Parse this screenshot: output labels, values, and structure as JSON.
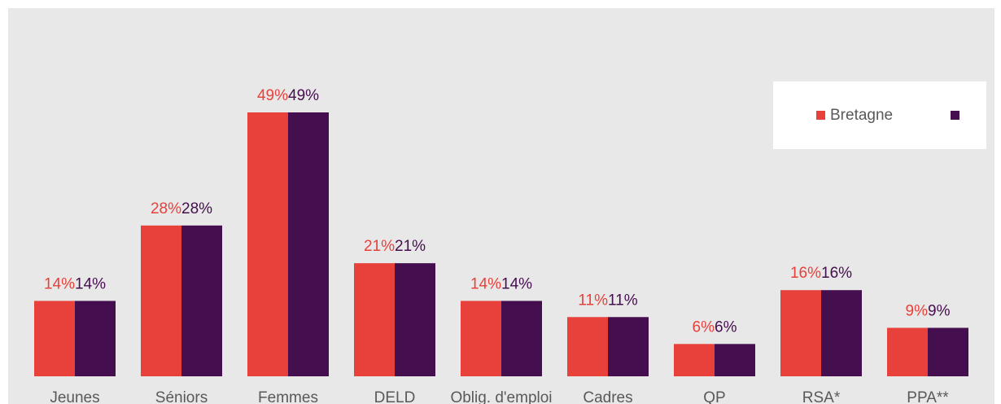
{
  "chart_data": {
    "type": "bar",
    "categories": [
      "Jeunes",
      "Séniors",
      "Femmes",
      "DELD",
      "Oblig. d'emploi",
      "Cadres",
      "QP",
      "RSA*",
      "PPA**"
    ],
    "series": [
      {
        "name": "Bretagne",
        "color": "#e8403a",
        "values": [
          14,
          28,
          49,
          21,
          14,
          11,
          6,
          16,
          9
        ],
        "value_labels": [
          "14%",
          "28%",
          "49%",
          "21%",
          "14%",
          "11%",
          "6%",
          "16%",
          "9%"
        ]
      },
      {
        "color": "#450e4e",
        "values": [
          14,
          28,
          49,
          21,
          14,
          11,
          6,
          16,
          9
        ],
        "value_labels": [
          "14%",
          "28%",
          "49%",
          "21%",
          "14%",
          "11%",
          "6%",
          "16%",
          "9%"
        ]
      }
    ]
  }
}
